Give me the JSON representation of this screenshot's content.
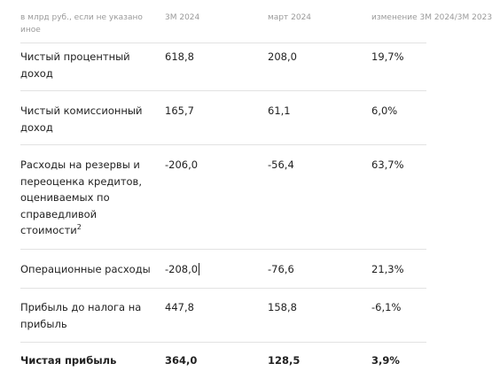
{
  "header": {
    "col_label": "в млрд руб., если не указано иное",
    "col_1": "3М 2024",
    "col_2": "март 2024",
    "col_3": "изменение 3М 2024/3М 2023"
  },
  "rows": [
    {
      "label": "Чистый процентный доход",
      "v1": "618,8",
      "v2": "208,0",
      "v3": "19,7%"
    },
    {
      "label": "Чистый комиссионный доход",
      "v1": "165,7",
      "v2": "61,1",
      "v3": "6,0%"
    },
    {
      "label": "Расходы на резервы и переоценка кредитов, оцениваемых по справедливой стоимости",
      "footnote": "2",
      "v1": "-206,0",
      "v2": "-56,4",
      "v3": "63,7%"
    },
    {
      "label": "Операционные расходы",
      "v1": "-208,0",
      "v2": "-76,6",
      "v3": "21,3%"
    },
    {
      "label": "Прибыль до налога на прибыль",
      "v1": "447,8",
      "v2": "158,8",
      "v3": "-6,1%"
    },
    {
      "label": "Чистая прибыль",
      "v1": "364,0",
      "v2": "128,5",
      "v3": "3,9%"
    }
  ]
}
